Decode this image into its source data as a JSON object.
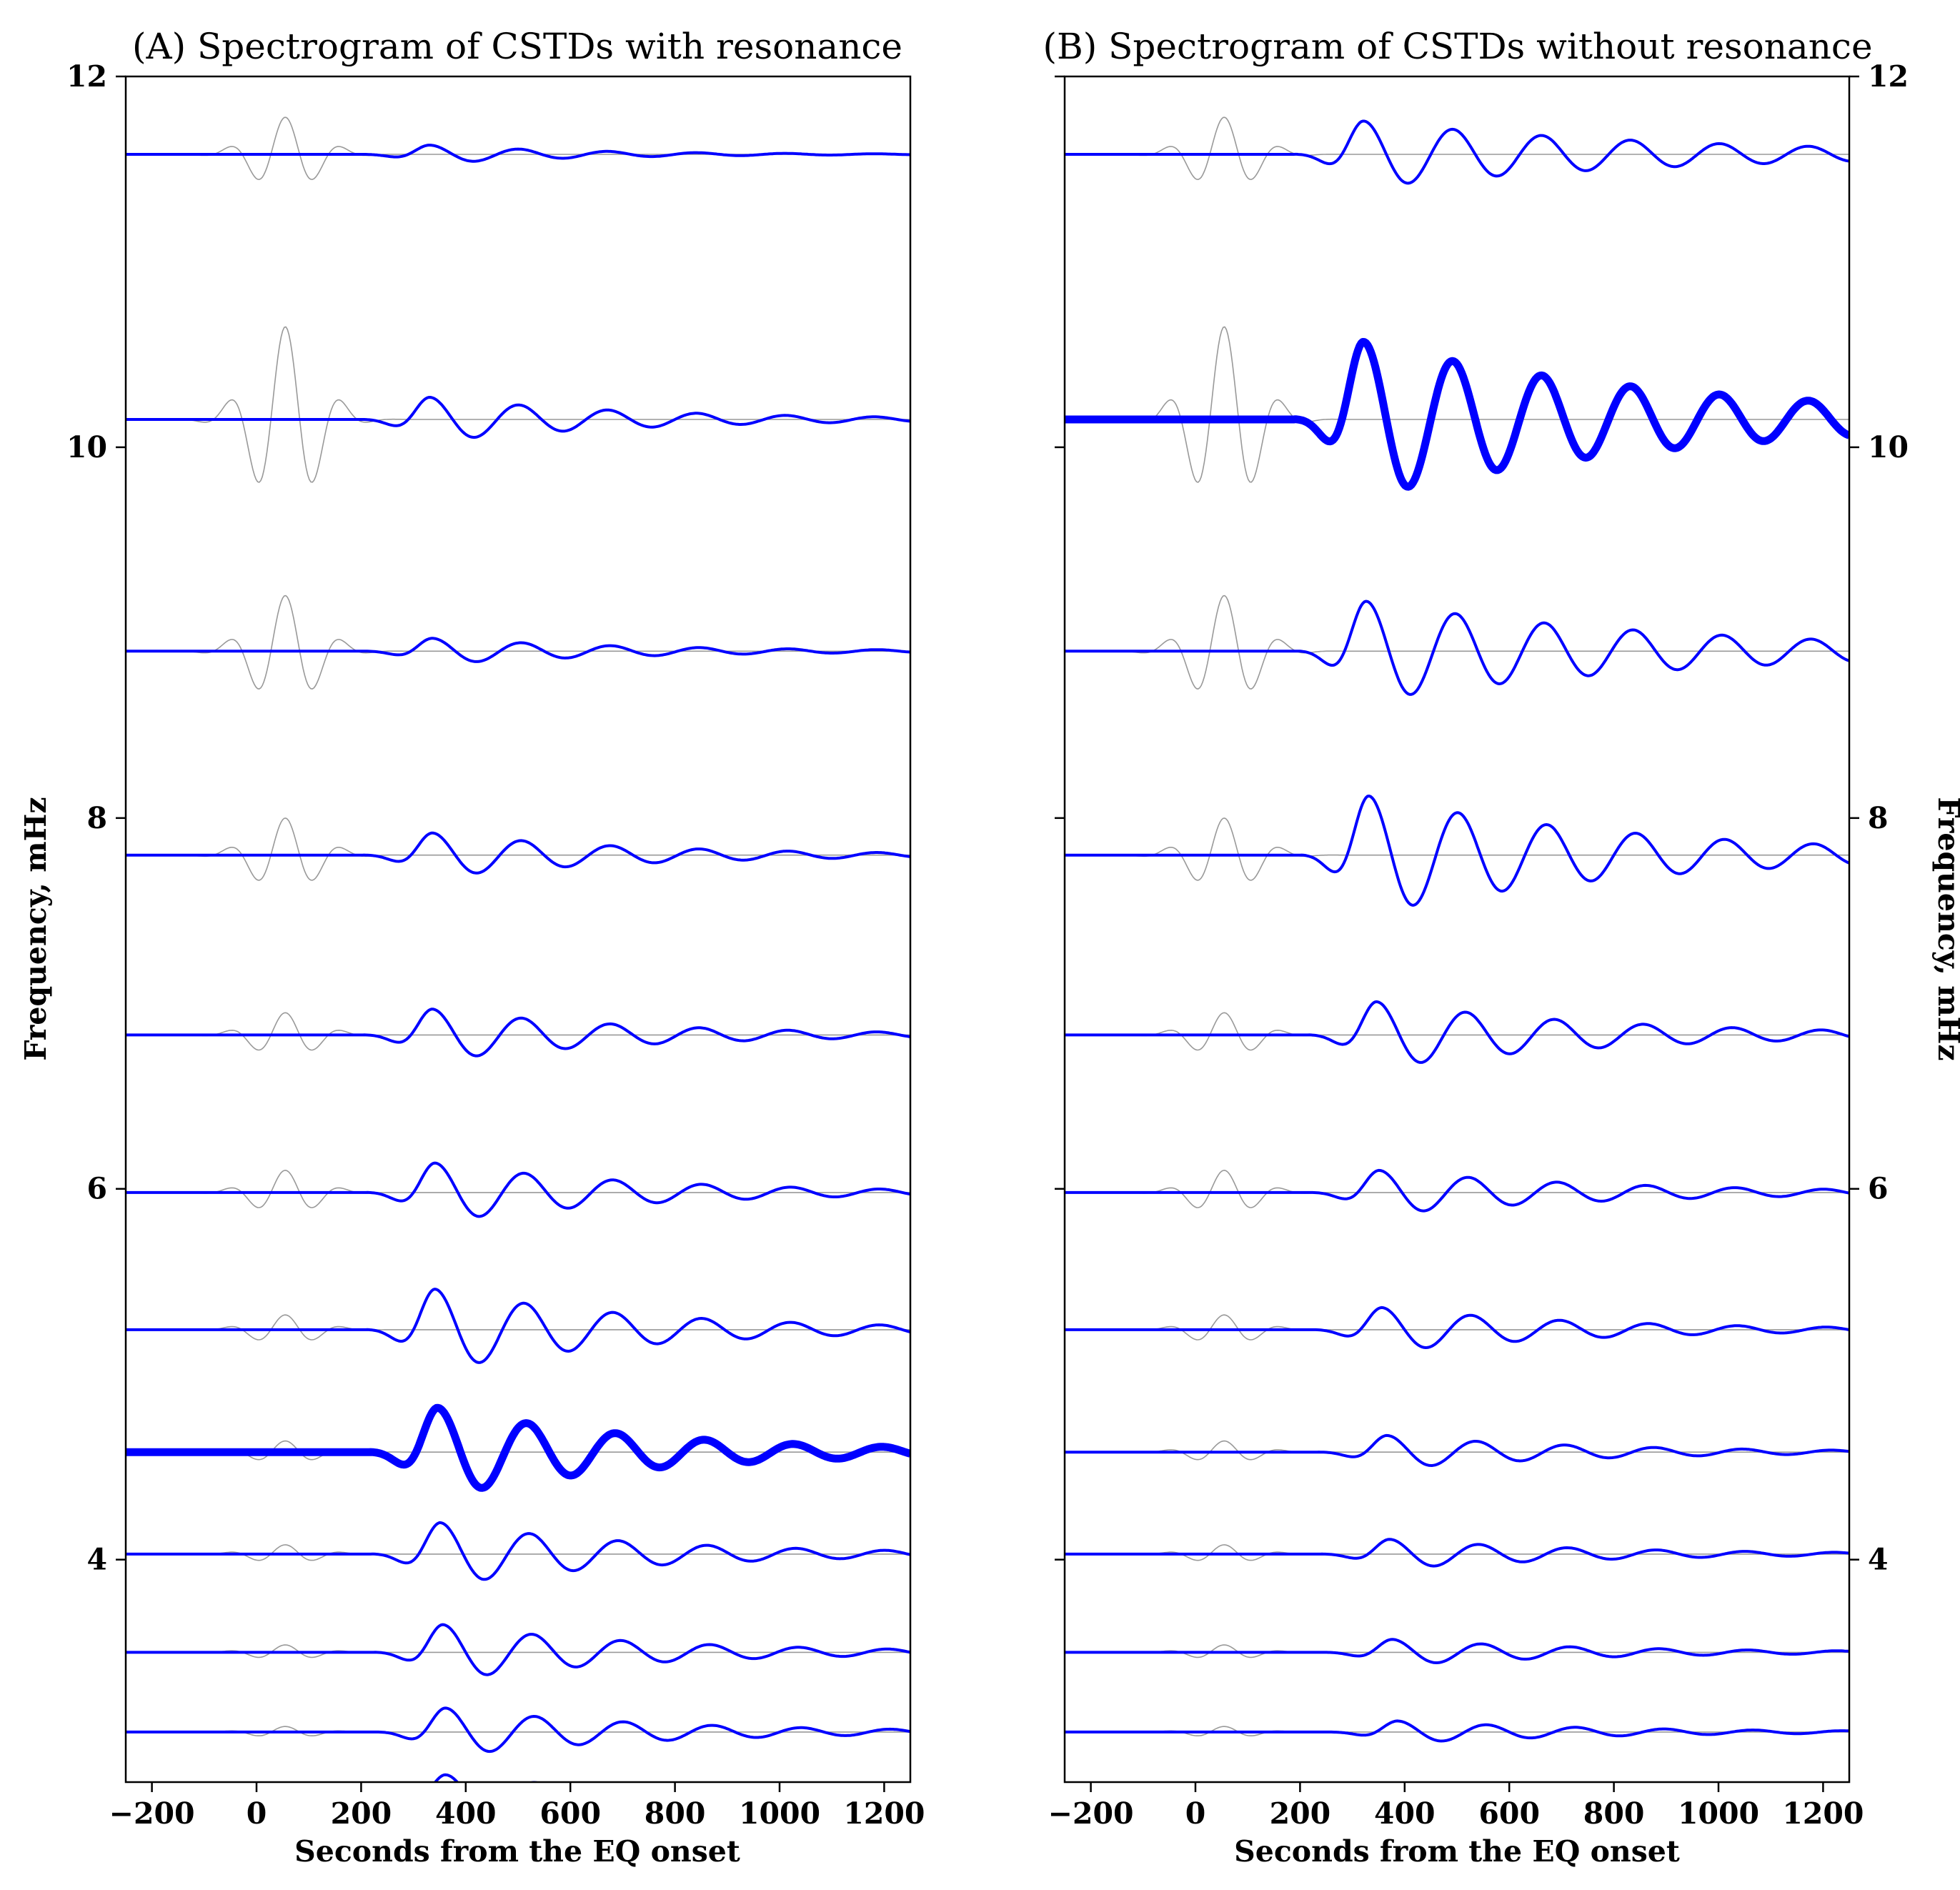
{
  "chart_data": [
    {
      "type": "line",
      "title": "(A) Spectrogram of CSTDs with resonance",
      "xlabel": "Seconds from the EQ onset",
      "ylabel": "Frequency, mHz",
      "xlim": [
        -250,
        1250
      ],
      "ylim": [
        2.8,
        12
      ],
      "xticks": [
        -200,
        0,
        200,
        400,
        600,
        800,
        1000,
        1200
      ],
      "yticks": [
        4,
        6,
        8,
        10,
        12
      ],
      "ylabel_side": "left",
      "grid": false,
      "highlight_baseline": 4.58,
      "series": [
        {
          "baseline": 11.58,
          "blue_amp": 0.05,
          "blue_center": 330,
          "blue_damp": 0.6,
          "gray_amp": 0.2
        },
        {
          "baseline": 10.15,
          "blue_amp": 0.12,
          "blue_center": 330,
          "blue_damp": 0.45,
          "gray_amp": 0.5
        },
        {
          "baseline": 8.9,
          "blue_amp": 0.07,
          "blue_center": 335,
          "blue_damp": 0.45,
          "gray_amp": 0.3
        },
        {
          "baseline": 7.8,
          "blue_amp": 0.12,
          "blue_center": 335,
          "blue_damp": 0.45,
          "gray_amp": 0.2
        },
        {
          "baseline": 6.83,
          "blue_amp": 0.14,
          "blue_center": 335,
          "blue_damp": 0.45,
          "gray_amp": 0.12
        },
        {
          "baseline": 5.98,
          "blue_amp": 0.16,
          "blue_center": 340,
          "blue_damp": 0.45,
          "gray_amp": 0.12
        },
        {
          "baseline": 5.24,
          "blue_amp": 0.22,
          "blue_center": 340,
          "blue_damp": 0.45,
          "gray_amp": 0.08
        },
        {
          "baseline": 4.58,
          "blue_amp": 0.24,
          "blue_center": 345,
          "blue_damp": 0.45,
          "gray_amp": 0.06
        },
        {
          "baseline": 4.03,
          "blue_amp": 0.17,
          "blue_center": 350,
          "blue_damp": 0.45,
          "gray_amp": 0.05
        },
        {
          "baseline": 3.5,
          "blue_amp": 0.15,
          "blue_center": 355,
          "blue_damp": 0.45,
          "gray_amp": 0.04
        },
        {
          "baseline": 3.07,
          "blue_amp": 0.13,
          "blue_center": 360,
          "blue_damp": 0.45,
          "gray_amp": 0.03
        },
        {
          "baseline": 2.72,
          "blue_amp": 0.12,
          "blue_center": 360,
          "blue_damp": 0.45,
          "gray_amp": 0.0
        }
      ]
    },
    {
      "type": "line",
      "title": "(B) Spectrogram of CSTDs without resonance",
      "xlabel": "Seconds from the EQ onset",
      "ylabel": "Frequency, mHz",
      "xlim": [
        -250,
        1250
      ],
      "ylim": [
        2.8,
        12
      ],
      "xticks": [
        -200,
        0,
        200,
        400,
        600,
        800,
        1000,
        1200
      ],
      "yticks": [
        4,
        6,
        8,
        10,
        12
      ],
      "ylabel_side": "right",
      "grid": false,
      "highlight_baseline": 10.15,
      "series": [
        {
          "baseline": 11.58,
          "blue_amp": 0.18,
          "blue_center": 320,
          "blue_damp": 0.3,
          "gray_amp": 0.2
        },
        {
          "baseline": 10.15,
          "blue_amp": 0.42,
          "blue_center": 320,
          "blue_damp": 0.3,
          "gray_amp": 0.5
        },
        {
          "baseline": 8.9,
          "blue_amp": 0.27,
          "blue_center": 325,
          "blue_damp": 0.3,
          "gray_amp": 0.3
        },
        {
          "baseline": 7.8,
          "blue_amp": 0.32,
          "blue_center": 330,
          "blue_damp": 0.35,
          "gray_amp": 0.2
        },
        {
          "baseline": 6.83,
          "blue_amp": 0.18,
          "blue_center": 345,
          "blue_damp": 0.4,
          "gray_amp": 0.12
        },
        {
          "baseline": 5.98,
          "blue_amp": 0.12,
          "blue_center": 350,
          "blue_damp": 0.4,
          "gray_amp": 0.12
        },
        {
          "baseline": 5.24,
          "blue_amp": 0.12,
          "blue_center": 355,
          "blue_damp": 0.45,
          "gray_amp": 0.08
        },
        {
          "baseline": 4.58,
          "blue_amp": 0.09,
          "blue_center": 365,
          "blue_damp": 0.45,
          "gray_amp": 0.06
        },
        {
          "baseline": 4.03,
          "blue_amp": 0.08,
          "blue_center": 370,
          "blue_damp": 0.45,
          "gray_amp": 0.05
        },
        {
          "baseline": 3.5,
          "blue_amp": 0.07,
          "blue_center": 375,
          "blue_damp": 0.45,
          "gray_amp": 0.04
        },
        {
          "baseline": 3.07,
          "blue_amp": 0.06,
          "blue_center": 385,
          "blue_damp": 0.45,
          "gray_amp": 0.03
        }
      ]
    }
  ],
  "colors": {
    "signal": "#0000ff",
    "reference": "#999999",
    "axes": "#000000"
  }
}
